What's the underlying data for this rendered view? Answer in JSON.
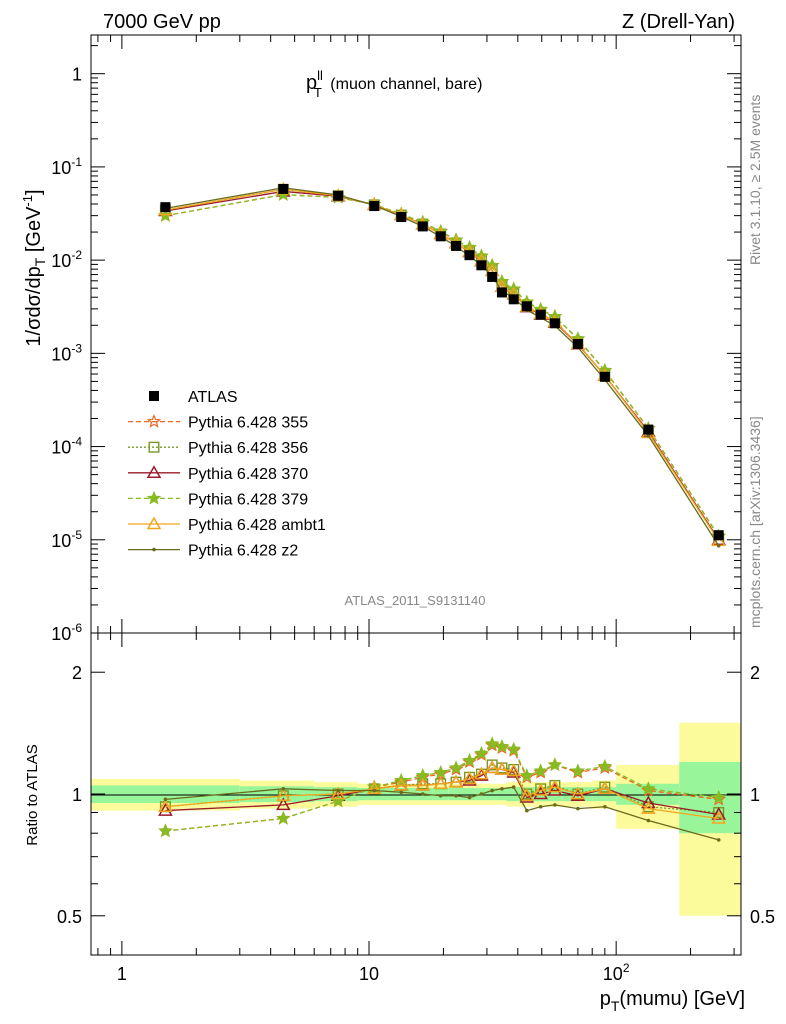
{
  "header": {
    "left": "7000 GeV pp",
    "right": "Z (Drell-Yan)"
  },
  "plot_title": "p_T^ll (muon channel, bare)",
  "watermark": "ATLAS_2011_S9131140",
  "side_labels": {
    "rivet": "Rivet 3.1.10, ≥ 2.5M events",
    "mcplots": "mcplots.cern.ch [arXiv:1306.3436]"
  },
  "colors": {
    "ATLAS": "#000000",
    "355": "#ee6622",
    "356": "#779922",
    "370": "#991a2a",
    "379": "#88bb22",
    "ambt1": "#f2a61e",
    "z2": "#6b6b1c",
    "band_inner": "#99f599",
    "band_outer": "#fbfb9c"
  },
  "chart_data": [
    {
      "type": "line",
      "panel": "main",
      "ylabel": "1/σdσ/dp_T [GeV^-1]",
      "xlabel": "",
      "xlog": true,
      "ylog": true,
      "xlim": [
        0.75,
        320
      ],
      "ylim": [
        1e-06,
        2.6
      ],
      "x_ticks": [
        "1",
        "10",
        "10^2"
      ],
      "y_ticks": [
        "10^-6",
        "10^-5",
        "10^-4",
        "10^-3",
        "10^-2",
        "10^-1",
        "1"
      ],
      "legend_position": "left-middle",
      "x": [
        1.5,
        4.5,
        7.5,
        10.5,
        13.5,
        16.5,
        19.5,
        22.5,
        25.5,
        28.5,
        31.5,
        34.5,
        38.5,
        43.5,
        49.5,
        56.5,
        70,
        90,
        135,
        260
      ],
      "data": {
        "name": "ATLAS",
        "values": [
          0.037,
          0.058,
          0.049,
          0.038,
          0.029,
          0.023,
          0.018,
          0.0142,
          0.0113,
          0.0088,
          0.0066,
          0.0045,
          0.0038,
          0.0032,
          0.0026,
          0.0021,
          0.00126,
          0.00056,
          0.000152,
          1.12e-05
        ]
      },
      "series": [
        {
          "name": "Pythia 6.428 355"
        },
        {
          "name": "Pythia 6.428 356"
        },
        {
          "name": "Pythia 6.428 370"
        },
        {
          "name": "Pythia 6.428 379"
        },
        {
          "name": "Pythia 6.428 ambt1"
        },
        {
          "name": "Pythia 6.428 z2"
        }
      ]
    },
    {
      "type": "line",
      "panel": "ratio",
      "ylabel": "Ratio to ATLAS",
      "xlabel": "p_T(mumu) [GeV]",
      "xlog": true,
      "ylog": true,
      "xlim": [
        0.75,
        320
      ],
      "ylim": [
        0.4,
        2.5
      ],
      "y_ticks": [
        "0.5",
        "1",
        "2"
      ],
      "x": [
        1.5,
        4.5,
        7.5,
        10.5,
        13.5,
        16.5,
        19.5,
        22.5,
        25.5,
        28.5,
        31.5,
        34.5,
        38.5,
        43.5,
        49.5,
        56.5,
        70,
        90,
        135,
        260
      ],
      "band_edges": [
        0.75,
        3,
        6,
        9,
        12,
        15,
        18,
        21,
        24,
        27,
        30,
        33,
        36,
        41,
        46,
        53,
        60,
        80,
        100,
        180,
        320
      ],
      "band_inner": [
        0.05,
        0.045,
        0.04,
        0.035,
        0.035,
        0.035,
        0.035,
        0.035,
        0.035,
        0.035,
        0.035,
        0.035,
        0.04,
        0.04,
        0.04,
        0.04,
        0.04,
        0.04,
        0.06,
        0.2
      ],
      "band_outer": [
        0.09,
        0.08,
        0.07,
        0.06,
        0.06,
        0.06,
        0.06,
        0.06,
        0.06,
        0.06,
        0.06,
        0.06,
        0.07,
        0.07,
        0.07,
        0.07,
        0.07,
        0.08,
        0.18,
        0.5
      ],
      "series": [
        {
          "name": "Pythia 6.428 355",
          "values": [
            0.81,
            0.87,
            0.96,
            1.04,
            1.07,
            1.1,
            1.12,
            1.15,
            1.2,
            1.25,
            1.32,
            1.3,
            1.28,
            1.1,
            1.13,
            1.18,
            1.13,
            1.16,
            1.02,
            0.97
          ]
        },
        {
          "name": "Pythia 6.428 356",
          "values": [
            0.93,
            0.99,
            1.0,
            1.03,
            1.05,
            1.06,
            1.06,
            1.07,
            1.1,
            1.12,
            1.18,
            1.16,
            1.15,
            1.0,
            1.03,
            1.05,
            1.0,
            1.04,
            0.93,
            0.9
          ]
        },
        {
          "name": "Pythia 6.428 370",
          "values": [
            0.91,
            0.94,
            0.99,
            1.03,
            1.05,
            1.05,
            1.06,
            1.07,
            1.08,
            1.11,
            1.16,
            1.15,
            1.13,
            0.98,
            1.0,
            1.02,
            0.99,
            1.03,
            0.95,
            0.89
          ]
        },
        {
          "name": "Pythia 6.428 379",
          "values": [
            0.81,
            0.87,
            0.96,
            1.04,
            1.08,
            1.11,
            1.13,
            1.16,
            1.21,
            1.26,
            1.33,
            1.31,
            1.29,
            1.11,
            1.14,
            1.18,
            1.14,
            1.17,
            1.03,
            0.98
          ]
        },
        {
          "name": "Pythia 6.428 ambt1",
          "values": [
            0.93,
            0.99,
            1.0,
            1.03,
            1.05,
            1.05,
            1.06,
            1.07,
            1.09,
            1.12,
            1.16,
            1.15,
            1.14,
            0.99,
            1.02,
            1.04,
            1.0,
            1.03,
            0.92,
            0.87
          ]
        },
        {
          "name": "Pythia 6.428 z2",
          "values": [
            0.97,
            1.03,
            1.02,
            1.02,
            1.01,
            1.0,
            0.99,
            0.99,
            0.98,
            1.0,
            1.02,
            1.03,
            1.04,
            0.91,
            0.93,
            0.94,
            0.92,
            0.93,
            0.86,
            0.77
          ]
        }
      ]
    }
  ]
}
